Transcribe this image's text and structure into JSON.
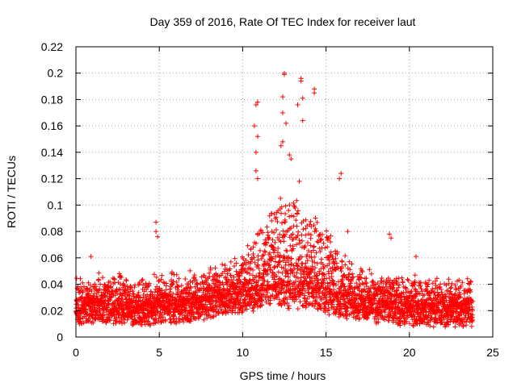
{
  "chart_data": {
    "type": "scatter",
    "title": "Day 359 of 2016, Rate Of TEC Index for receiver laut",
    "xlabel": "GPS time / hours",
    "ylabel": "ROTI / TECUs",
    "xlim": [
      0,
      25
    ],
    "ylim": [
      0,
      0.22
    ],
    "xticks": [
      0,
      5,
      10,
      15,
      20,
      25
    ],
    "yticks": [
      0,
      0.02,
      0.04,
      0.06,
      0.08,
      0.1,
      0.12,
      0.14,
      0.16,
      0.18,
      0.2,
      0.22
    ],
    "grid": true,
    "marker": "+",
    "color": "#ff0000",
    "x_range_of_data": [
      0,
      23.8
    ],
    "baseline": [
      {
        "x": 0,
        "y": 0.018
      },
      {
        "x": 2,
        "y": 0.02
      },
      {
        "x": 4,
        "y": 0.018
      },
      {
        "x": 6,
        "y": 0.02
      },
      {
        "x": 8,
        "y": 0.022
      },
      {
        "x": 10,
        "y": 0.028
      },
      {
        "x": 12,
        "y": 0.032
      },
      {
        "x": 14,
        "y": 0.03
      },
      {
        "x": 16,
        "y": 0.024
      },
      {
        "x": 18,
        "y": 0.02
      },
      {
        "x": 20,
        "y": 0.018
      },
      {
        "x": 22,
        "y": 0.017
      },
      {
        "x": 23.8,
        "y": 0.017
      }
    ],
    "notable_points": [
      {
        "x": 12.5,
        "y": 0.2
      },
      {
        "x": 12.5,
        "y": 0.199
      },
      {
        "x": 13.5,
        "y": 0.196
      },
      {
        "x": 13.5,
        "y": 0.194
      },
      {
        "x": 14.3,
        "y": 0.188
      },
      {
        "x": 14.3,
        "y": 0.185
      },
      {
        "x": 12.4,
        "y": 0.182
      },
      {
        "x": 13.6,
        "y": 0.181
      },
      {
        "x": 10.9,
        "y": 0.178
      },
      {
        "x": 10.8,
        "y": 0.176
      },
      {
        "x": 13.3,
        "y": 0.176
      },
      {
        "x": 12.4,
        "y": 0.17
      },
      {
        "x": 13.6,
        "y": 0.164
      },
      {
        "x": 12.6,
        "y": 0.162
      },
      {
        "x": 10.7,
        "y": 0.16
      },
      {
        "x": 10.9,
        "y": 0.152
      },
      {
        "x": 12.4,
        "y": 0.148
      },
      {
        "x": 12.3,
        "y": 0.145
      },
      {
        "x": 10.8,
        "y": 0.14
      },
      {
        "x": 12.8,
        "y": 0.138
      },
      {
        "x": 12.9,
        "y": 0.135
      },
      {
        "x": 10.8,
        "y": 0.126
      },
      {
        "x": 10.9,
        "y": 0.12
      },
      {
        "x": 15.9,
        "y": 0.124
      },
      {
        "x": 15.8,
        "y": 0.12
      },
      {
        "x": 13.4,
        "y": 0.118
      },
      {
        "x": 4.8,
        "y": 0.087
      },
      {
        "x": 4.8,
        "y": 0.08
      },
      {
        "x": 4.9,
        "y": 0.076
      },
      {
        "x": 0.9,
        "y": 0.061
      },
      {
        "x": 18.8,
        "y": 0.078
      },
      {
        "x": 18.9,
        "y": 0.075
      },
      {
        "x": 20.4,
        "y": 0.061
      },
      {
        "x": 16.3,
        "y": 0.08
      }
    ]
  }
}
